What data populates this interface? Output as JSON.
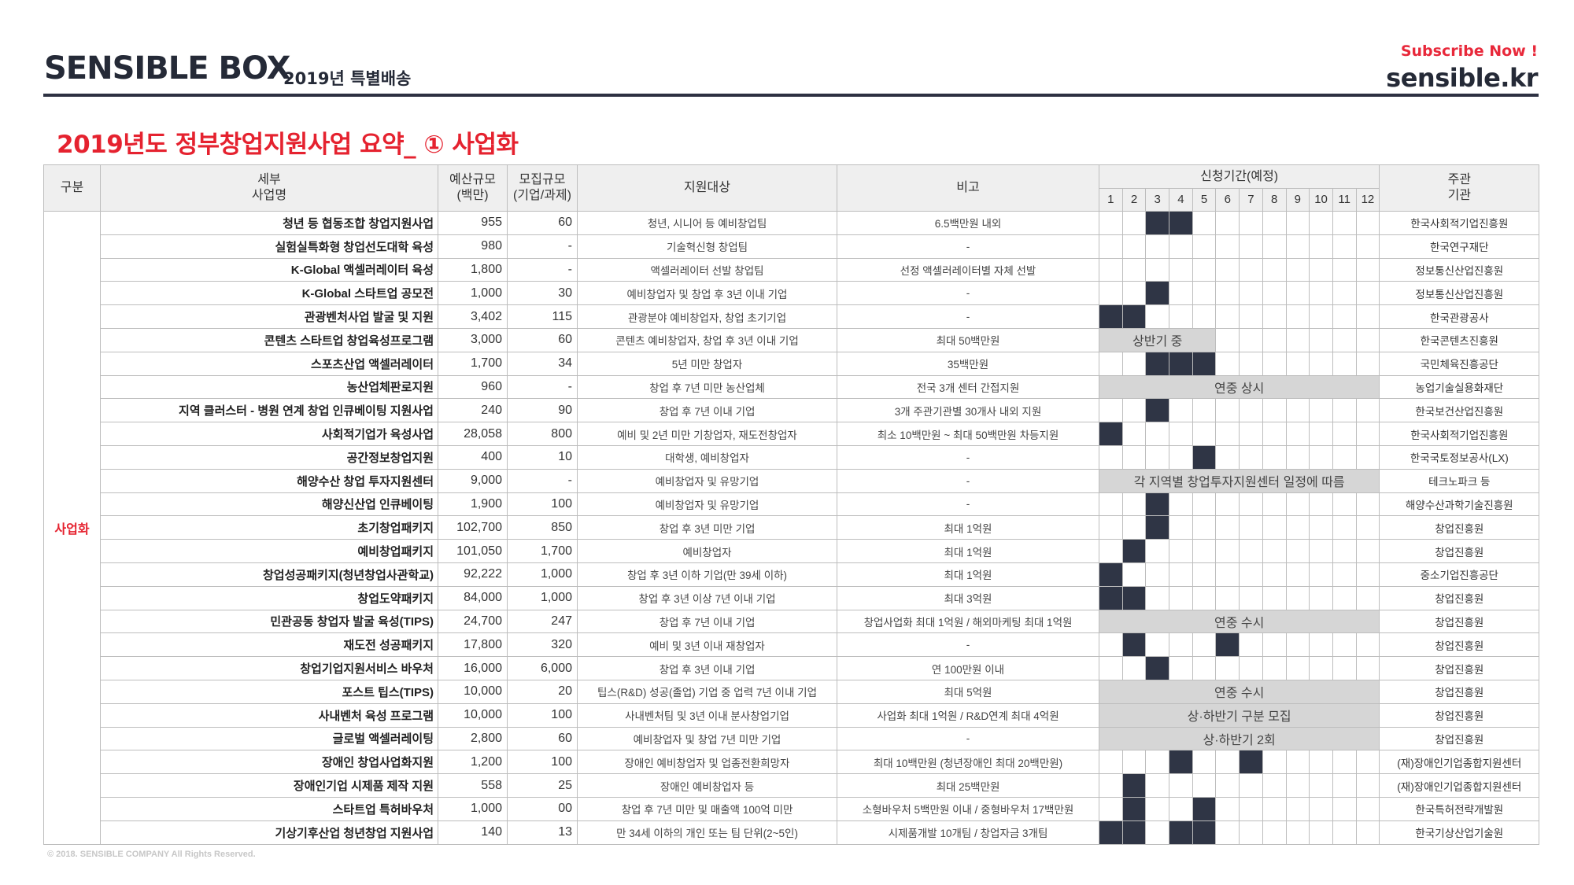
{
  "header": {
    "brand": "SENSIBLE BOX",
    "brand_sub": "2019년 특별배송",
    "subscribe": "Subscribe Now !",
    "site": "sensible.kr"
  },
  "title": "2019년도 정부창업지원사업 요약_ ① 사업화",
  "columns": {
    "category": "구분",
    "name": [
      "세부",
      "사업명"
    ],
    "budget": [
      "예산규모",
      "(백만)"
    ],
    "scale": [
      "모집규모",
      "(기업/과제)"
    ],
    "target": "지원대상",
    "note": "비고",
    "period": "신청기간(예정)",
    "months": [
      "1",
      "2",
      "3",
      "4",
      "5",
      "6",
      "7",
      "8",
      "9",
      "10",
      "11",
      "12"
    ],
    "org": [
      "주관",
      "기관"
    ]
  },
  "category_label": "사업화",
  "rows": [
    {
      "name": "청년 등 협동조합 창업지원사업",
      "budget": "955",
      "scale": "60",
      "target": "청년, 시니어 등 예비창업팀",
      "note": "6.5백만원 내외",
      "months": [
        3,
        4
      ],
      "org": "한국사회적기업진흥원"
    },
    {
      "name": "실험실특화형 창업선도대학 육성",
      "budget": "980",
      "scale": "-",
      "target": "기술혁신형 창업팀",
      "note": "-",
      "months": [],
      "org": "한국연구재단"
    },
    {
      "name": "K-Global 액셀러레이터 육성",
      "budget": "1,800",
      "scale": "-",
      "target": "액셀러레이터 선발 창업팀",
      "note": "선정 액셀러레이터별 자체 선발",
      "months": [],
      "org": "정보통신산업진흥원"
    },
    {
      "name": "K-Global 스타트업 공모전",
      "budget": "1,000",
      "scale": "30",
      "target": "예비창업자 및 창업 후 3년 이내 기업",
      "note": "-",
      "months": [
        3
      ],
      "org": "정보통신산업진흥원"
    },
    {
      "name": "관광벤처사업 발굴 및 지원",
      "budget": "3,402",
      "scale": "115",
      "target": "관광분야 예비창업자, 창업 초기기업",
      "note": "-",
      "months": [
        1,
        2
      ],
      "org": "한국관광공사"
    },
    {
      "name": "콘텐츠 스타트업 창업육성프로그램",
      "budget": "3,000",
      "scale": "60",
      "target": "콘텐츠 예비창업자, 창업 후 3년 이내 기업",
      "note": "최대 50백만원",
      "span": [
        1,
        5,
        "상반기 중"
      ],
      "org": "한국콘텐츠진흥원"
    },
    {
      "name": "스포츠산업 액셀러레이터",
      "budget": "1,700",
      "scale": "34",
      "target": "5년 미만 창업자",
      "note": "35백만원",
      "months": [
        3,
        4,
        5
      ],
      "org": "국민체육진흥공단"
    },
    {
      "name": "농산업체판로지원",
      "budget": "960",
      "scale": "-",
      "target": "창업 후 7년 미만 농산업체",
      "note": "전국 3개 센터 간접지원",
      "span": [
        1,
        12,
        "연중 상시"
      ],
      "org": "농업기술실용화재단"
    },
    {
      "name": "지역 클러스터 - 병원 연계 창업 인큐베이팅 지원사업",
      "budget": "240",
      "scale": "90",
      "target": "창업 후 7년 이내 기업",
      "note": "3개 주관기관별 30개사 내외 지원",
      "months": [
        3
      ],
      "org": "한국보건산업진흥원"
    },
    {
      "name": "사회적기업가 육성사업",
      "budget": "28,058",
      "scale": "800",
      "target": "예비 및 2년 미만 기창업자, 재도전창업자",
      "note": "최소 10백만원 ~ 최대 50백만원 차등지원",
      "months": [
        1
      ],
      "org": "한국사회적기업진흥원"
    },
    {
      "name": "공간정보창업지원",
      "budget": "400",
      "scale": "10",
      "target": "대학생, 예비창업자",
      "note": "-",
      "months": [
        5
      ],
      "org": "한국국토정보공사(LX)"
    },
    {
      "name": "해양수산 창업 투자지원센터",
      "budget": "9,000",
      "scale": "-",
      "target": "예비창업자 및 유망기업",
      "note": "-",
      "span": [
        1,
        12,
        "각 지역별 창업투자지원센터 일정에 따름"
      ],
      "org": "테크노파크 등"
    },
    {
      "name": "해양신산업 인큐베이팅",
      "budget": "1,900",
      "scale": "100",
      "target": "예비창업자 및 유망기업",
      "note": "-",
      "months": [
        3
      ],
      "org": "해양수산과학기술진흥원"
    },
    {
      "name": "초기창업패키지",
      "budget": "102,700",
      "scale": "850",
      "target": "창업 후 3년 미만 기업",
      "note": "최대 1억원",
      "months": [
        3
      ],
      "org": "창업진흥원"
    },
    {
      "name": "예비창업패키지",
      "budget": "101,050",
      "scale": "1,700",
      "target": "예비창업자",
      "note": "최대 1억원",
      "months": [
        2
      ],
      "org": "창업진흥원"
    },
    {
      "name": "창업성공패키지(청년창업사관학교)",
      "budget": "92,222",
      "scale": "1,000",
      "target": "창업 후 3년 이하 기업(만 39세 이하)",
      "note": "최대 1억원",
      "months": [
        1
      ],
      "org": "중소기업진흥공단"
    },
    {
      "name": "창업도약패키지",
      "budget": "84,000",
      "scale": "1,000",
      "target": "창업 후 3년 이상 7년 이내 기업",
      "note": "최대 3억원",
      "months": [
        1,
        2
      ],
      "org": "창업진흥원"
    },
    {
      "name": "민관공동 창업자 발굴 육성(TIPS)",
      "budget": "24,700",
      "scale": "247",
      "target": "창업 후 7년 이내 기업",
      "note": "창업사업화 최대 1억원 / 해외마케팅 최대 1억원",
      "span": [
        1,
        12,
        "연중 수시"
      ],
      "org": "창업진흥원"
    },
    {
      "name": "재도전 성공패키지",
      "budget": "17,800",
      "scale": "320",
      "target": "예비 및 3년 이내 재창업자",
      "note": "-",
      "months": [
        2,
        6
      ],
      "org": "창업진흥원"
    },
    {
      "name": "창업기업지원서비스 바우처",
      "budget": "16,000",
      "scale": "6,000",
      "target": "창업 후 3년 이내 기업",
      "note": "연 100만원 이내",
      "months": [
        3
      ],
      "org": "창업진흥원"
    },
    {
      "name": "포스트 팁스(TIPS)",
      "budget": "10,000",
      "scale": "20",
      "target": "팁스(R&D) 성공(졸업) 기업 중 업력 7년 이내 기업",
      "note": "최대 5억원",
      "span": [
        1,
        12,
        "연중 수시"
      ],
      "org": "창업진흥원"
    },
    {
      "name": "사내벤처 육성 프로그램",
      "budget": "10,000",
      "scale": "100",
      "target": "사내벤처팀 및 3년 이내 분사창업기업",
      "note": "사업화 최대 1억원 / R&D연계 최대 4억원",
      "span": [
        1,
        12,
        "상·하반기 구분 모집"
      ],
      "org": "창업진흥원"
    },
    {
      "name": "글로벌 액셀러레이팅",
      "budget": "2,800",
      "scale": "60",
      "target": "예비창업자 및 창업 7년 미만 기업",
      "note": "-",
      "span": [
        1,
        12,
        "상·하반기 2회"
      ],
      "org": "창업진흥원"
    },
    {
      "name": "장애인 창업사업화지원",
      "budget": "1,200",
      "scale": "100",
      "target": "장애인 예비창업자 및 업종전환희망자",
      "note": "최대 10백만원 (청년장애인 최대 20백만원)",
      "months": [
        4,
        7
      ],
      "org": "(재)장애인기업종합지원센터"
    },
    {
      "name": "장애인기업 시제품 제작 지원",
      "budget": "558",
      "scale": "25",
      "target": "장애인 예비창업자 등",
      "note": "최대 25백만원",
      "months": [
        2
      ],
      "org": "(재)장애인기업종합지원센터"
    },
    {
      "name": "스타트업 특허바우처",
      "budget": "1,000",
      "scale": "00",
      "target": "창업 후 7년 미만 및 매출액 100억 미만",
      "note": "소형바우처 5백만원 이내 / 중형바우처 17백만원",
      "months": [
        2,
        5
      ],
      "org": "한국특허전략개발원"
    },
    {
      "name": "기상기후산업 청년창업 지원사업",
      "budget": "140",
      "scale": "13",
      "target": "만 34세 이하의 개인 또는 팀 단위(2~5인)",
      "note": "시제품개발 10개팀 / 창업자금 3개팀",
      "months": [
        1,
        2,
        4,
        5
      ],
      "org": "한국기상산업기술원"
    }
  ],
  "footer": "© 2018. SENSIBLE COMPANY All Rights Reserved."
}
